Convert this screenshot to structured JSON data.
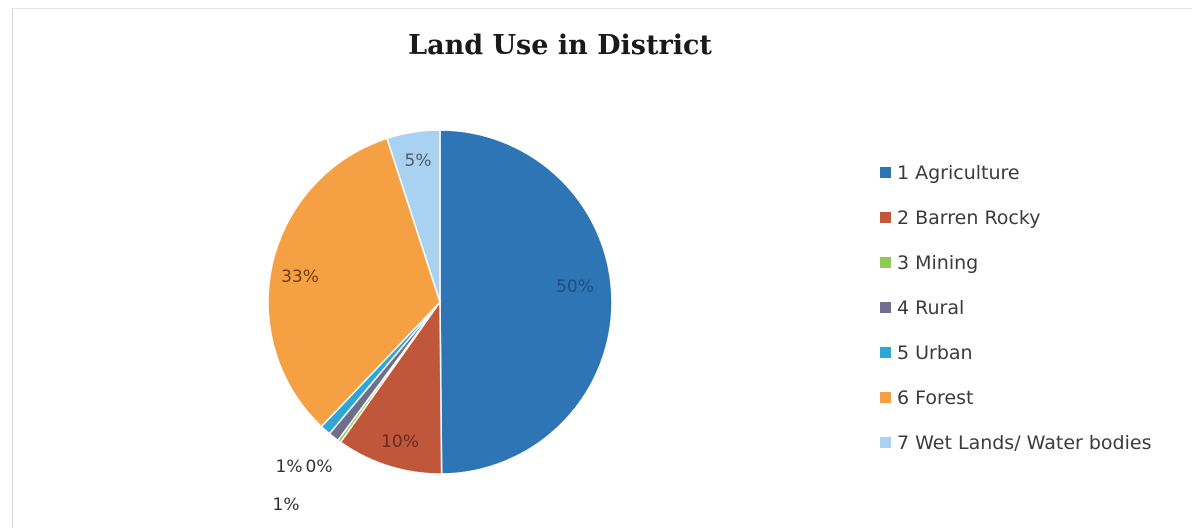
{
  "chart_data": {
    "type": "pie",
    "title": "Land Use in District",
    "categories": [
      "1 Agriculture",
      "2 Barren Rocky",
      "3 Mining",
      "4 Rural",
      "5 Urban",
      "6 Forest",
      "7 Wet Lands/ Water bodies"
    ],
    "values": [
      50,
      10,
      0.3,
      1,
      1,
      33,
      5
    ],
    "data_labels": [
      "50%",
      "10%",
      "0%",
      "1%",
      "1%",
      "33%",
      "5%"
    ],
    "colors": [
      "#2e75b6",
      "#c0563a",
      "#8fcb52",
      "#6f6e8c",
      "#2ea7d6",
      "#f5a043",
      "#a9d2f0"
    ],
    "legend_position": "right",
    "start_angle": "12 o'clock",
    "direction": "clockwise"
  }
}
